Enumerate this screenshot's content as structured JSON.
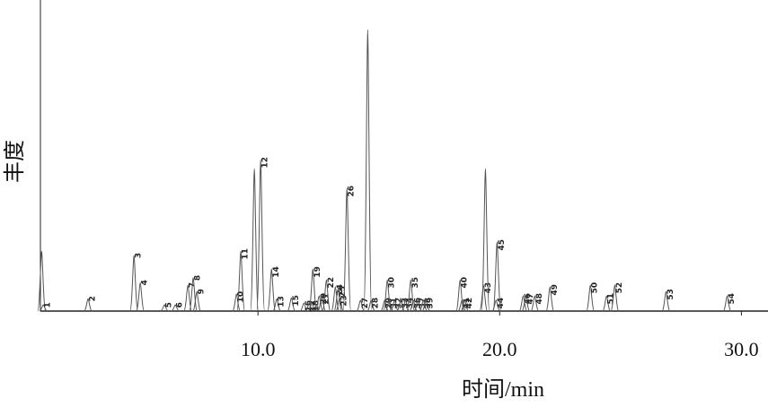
{
  "chart_data": {
    "type": "line",
    "xlabel": "时间/min",
    "ylabel": "丰度",
    "color": "#555555",
    "xlim": [
      1.0,
      31.1
    ],
    "ylim": [
      0,
      100
    ],
    "xticks": [
      {
        "value": 10,
        "label": "10.0"
      },
      {
        "value": 20,
        "label": "20.0"
      },
      {
        "value": 30,
        "label": "30.0"
      }
    ],
    "peaks": {
      "labels": [
        null,
        "1",
        "2",
        "3",
        "4",
        "5",
        "6",
        "7",
        "8",
        "9",
        "10",
        "11",
        null,
        "12",
        "13",
        "14",
        "15",
        "16",
        "17",
        "18",
        "19",
        "20",
        "21",
        "22",
        "23",
        "24",
        "25",
        "26",
        "27",
        null,
        "28",
        "29",
        "30",
        "31",
        "32",
        "33",
        "34",
        "35",
        "36",
        "37",
        "38",
        "39",
        "40",
        "41",
        "42",
        "43",
        null,
        "44",
        "45",
        "46",
        "47",
        "48",
        "49",
        "50",
        "51",
        "52",
        "53",
        "54"
      ],
      "x": [
        1.05,
        1.12,
        2.97,
        4.87,
        5.13,
        6.13,
        6.58,
        7.1,
        7.32,
        7.47,
        9.11,
        9.29,
        9.85,
        10.11,
        10.78,
        10.56,
        11.38,
        11.9,
        12.12,
        12.23,
        12.27,
        12.53,
        12.64,
        12.83,
        13.38,
        13.2,
        13.31,
        13.68,
        14.24,
        14.54,
        14.68,
        15.24,
        15.35,
        15.43,
        15.65,
        15.91,
        16.1,
        16.32,
        16.43,
        16.62,
        16.84,
        16.95,
        18.36,
        18.44,
        18.55,
        19.33,
        19.41,
        19.85,
        19.89,
        20.97,
        21.08,
        21.45,
        22.08,
        23.75,
        24.42,
        24.76,
        26.88,
        29.41
      ],
      "values": [
        19.3,
        2,
        4,
        17.9,
        9.2,
        2,
        2,
        8.4,
        10.7,
        6.3,
        5.5,
        19.3,
        45.8,
        48.7,
        4,
        13.5,
        4.3,
        2.6,
        2.6,
        2.6,
        13.5,
        4.9,
        4.9,
        10.1,
        4.3,
        7.8,
        7.2,
        39.5,
        3.5,
        90.5,
        3.5,
        3.5,
        10.1,
        3.5,
        3.5,
        3.5,
        3.5,
        10.1,
        3.5,
        3.5,
        3.5,
        3.5,
        10.1,
        3.5,
        3.5,
        8.4,
        45.8,
        3.5,
        22.2,
        4.9,
        4.9,
        4.9,
        7.8,
        8.4,
        4.9,
        8.4,
        6.3,
        4.9
      ]
    }
  }
}
